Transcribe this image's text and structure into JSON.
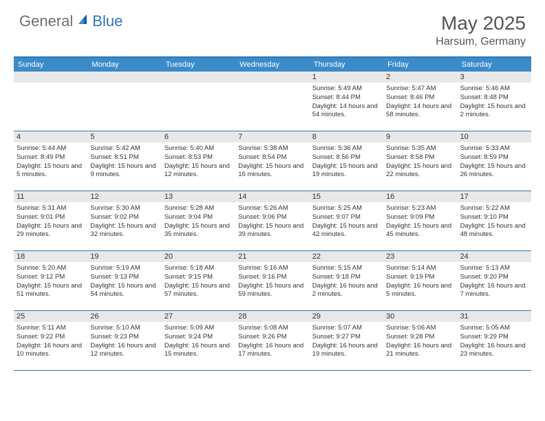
{
  "brand": {
    "part1": "General",
    "part2": "Blue"
  },
  "title": "May 2025",
  "location": "Harsum, Germany",
  "colors": {
    "header_bg": "#3b8bc9",
    "border": "#2f77b7",
    "daynum_bg": "#e8e8e8",
    "text": "#333333",
    "title_text": "#555555",
    "logo_gray": "#6e6e6e",
    "logo_blue": "#2f77b7",
    "background": "#ffffff"
  },
  "weekdays": [
    "Sunday",
    "Monday",
    "Tuesday",
    "Wednesday",
    "Thursday",
    "Friday",
    "Saturday"
  ],
  "weeks": [
    [
      {
        "n": "",
        "sr": "",
        "ss": "",
        "dl": ""
      },
      {
        "n": "",
        "sr": "",
        "ss": "",
        "dl": ""
      },
      {
        "n": "",
        "sr": "",
        "ss": "",
        "dl": ""
      },
      {
        "n": "",
        "sr": "",
        "ss": "",
        "dl": ""
      },
      {
        "n": "1",
        "sr": "Sunrise: 5:49 AM",
        "ss": "Sunset: 8:44 PM",
        "dl": "Daylight: 14 hours and 54 minutes."
      },
      {
        "n": "2",
        "sr": "Sunrise: 5:47 AM",
        "ss": "Sunset: 8:46 PM",
        "dl": "Daylight: 14 hours and 58 minutes."
      },
      {
        "n": "3",
        "sr": "Sunrise: 5:46 AM",
        "ss": "Sunset: 8:48 PM",
        "dl": "Daylight: 15 hours and 2 minutes."
      }
    ],
    [
      {
        "n": "4",
        "sr": "Sunrise: 5:44 AM",
        "ss": "Sunset: 8:49 PM",
        "dl": "Daylight: 15 hours and 5 minutes."
      },
      {
        "n": "5",
        "sr": "Sunrise: 5:42 AM",
        "ss": "Sunset: 8:51 PM",
        "dl": "Daylight: 15 hours and 9 minutes."
      },
      {
        "n": "6",
        "sr": "Sunrise: 5:40 AM",
        "ss": "Sunset: 8:53 PM",
        "dl": "Daylight: 15 hours and 12 minutes."
      },
      {
        "n": "7",
        "sr": "Sunrise: 5:38 AM",
        "ss": "Sunset: 8:54 PM",
        "dl": "Daylight: 15 hours and 16 minutes."
      },
      {
        "n": "8",
        "sr": "Sunrise: 5:36 AM",
        "ss": "Sunset: 8:56 PM",
        "dl": "Daylight: 15 hours and 19 minutes."
      },
      {
        "n": "9",
        "sr": "Sunrise: 5:35 AM",
        "ss": "Sunset: 8:58 PM",
        "dl": "Daylight: 15 hours and 22 minutes."
      },
      {
        "n": "10",
        "sr": "Sunrise: 5:33 AM",
        "ss": "Sunset: 8:59 PM",
        "dl": "Daylight: 15 hours and 26 minutes."
      }
    ],
    [
      {
        "n": "11",
        "sr": "Sunrise: 5:31 AM",
        "ss": "Sunset: 9:01 PM",
        "dl": "Daylight: 15 hours and 29 minutes."
      },
      {
        "n": "12",
        "sr": "Sunrise: 5:30 AM",
        "ss": "Sunset: 9:02 PM",
        "dl": "Daylight: 15 hours and 32 minutes."
      },
      {
        "n": "13",
        "sr": "Sunrise: 5:28 AM",
        "ss": "Sunset: 9:04 PM",
        "dl": "Daylight: 15 hours and 35 minutes."
      },
      {
        "n": "14",
        "sr": "Sunrise: 5:26 AM",
        "ss": "Sunset: 9:06 PM",
        "dl": "Daylight: 15 hours and 39 minutes."
      },
      {
        "n": "15",
        "sr": "Sunrise: 5:25 AM",
        "ss": "Sunset: 9:07 PM",
        "dl": "Daylight: 15 hours and 42 minutes."
      },
      {
        "n": "16",
        "sr": "Sunrise: 5:23 AM",
        "ss": "Sunset: 9:09 PM",
        "dl": "Daylight: 15 hours and 45 minutes."
      },
      {
        "n": "17",
        "sr": "Sunrise: 5:22 AM",
        "ss": "Sunset: 9:10 PM",
        "dl": "Daylight: 15 hours and 48 minutes."
      }
    ],
    [
      {
        "n": "18",
        "sr": "Sunrise: 5:20 AM",
        "ss": "Sunset: 9:12 PM",
        "dl": "Daylight: 15 hours and 51 minutes."
      },
      {
        "n": "19",
        "sr": "Sunrise: 5:19 AM",
        "ss": "Sunset: 9:13 PM",
        "dl": "Daylight: 15 hours and 54 minutes."
      },
      {
        "n": "20",
        "sr": "Sunrise: 5:18 AM",
        "ss": "Sunset: 9:15 PM",
        "dl": "Daylight: 15 hours and 57 minutes."
      },
      {
        "n": "21",
        "sr": "Sunrise: 5:16 AM",
        "ss": "Sunset: 9:16 PM",
        "dl": "Daylight: 15 hours and 59 minutes."
      },
      {
        "n": "22",
        "sr": "Sunrise: 5:15 AM",
        "ss": "Sunset: 9:18 PM",
        "dl": "Daylight: 16 hours and 2 minutes."
      },
      {
        "n": "23",
        "sr": "Sunrise: 5:14 AM",
        "ss": "Sunset: 9:19 PM",
        "dl": "Daylight: 16 hours and 5 minutes."
      },
      {
        "n": "24",
        "sr": "Sunrise: 5:13 AM",
        "ss": "Sunset: 9:20 PM",
        "dl": "Daylight: 16 hours and 7 minutes."
      }
    ],
    [
      {
        "n": "25",
        "sr": "Sunrise: 5:11 AM",
        "ss": "Sunset: 9:22 PM",
        "dl": "Daylight: 16 hours and 10 minutes."
      },
      {
        "n": "26",
        "sr": "Sunrise: 5:10 AM",
        "ss": "Sunset: 9:23 PM",
        "dl": "Daylight: 16 hours and 12 minutes."
      },
      {
        "n": "27",
        "sr": "Sunrise: 5:09 AM",
        "ss": "Sunset: 9:24 PM",
        "dl": "Daylight: 16 hours and 15 minutes."
      },
      {
        "n": "28",
        "sr": "Sunrise: 5:08 AM",
        "ss": "Sunset: 9:26 PM",
        "dl": "Daylight: 16 hours and 17 minutes."
      },
      {
        "n": "29",
        "sr": "Sunrise: 5:07 AM",
        "ss": "Sunset: 9:27 PM",
        "dl": "Daylight: 16 hours and 19 minutes."
      },
      {
        "n": "30",
        "sr": "Sunrise: 5:06 AM",
        "ss": "Sunset: 9:28 PM",
        "dl": "Daylight: 16 hours and 21 minutes."
      },
      {
        "n": "31",
        "sr": "Sunrise: 5:05 AM",
        "ss": "Sunset: 9:29 PM",
        "dl": "Daylight: 16 hours and 23 minutes."
      }
    ]
  ]
}
